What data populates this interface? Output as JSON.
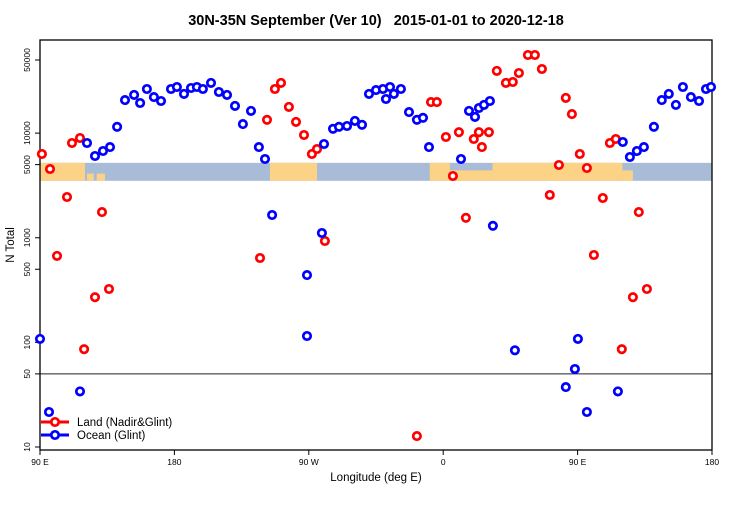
{
  "chart_data": {
    "type": "scatter",
    "title": "30N-35N September (Ver 10)   2015-01-01 to 2020-12-18",
    "xlabel": "Longitude (deg E)",
    "ylabel": "N Total",
    "x_axis": {
      "range": [
        90,
        540
      ],
      "note": "longitude wraps eastward: 90E to 180 to 90W to 0 to 90E to 180",
      "ticks": [
        {
          "value": 90,
          "label": "90 E"
        },
        {
          "value": 180,
          "label": "180"
        },
        {
          "value": 270,
          "label": "90 W"
        },
        {
          "value": 360,
          "label": "0"
        },
        {
          "value": 450,
          "label": "90 E"
        },
        {
          "value": 540,
          "label": "180"
        }
      ]
    },
    "y_axis": {
      "scale": "log",
      "range": [
        10,
        50000
      ],
      "ticks": [
        50000,
        10000,
        5000,
        1000,
        500,
        100,
        50,
        10
      ]
    },
    "reference_line_y": 50,
    "coast_band": {
      "value_range": [
        3500,
        5200
      ],
      "ocean_color": "#a8bcd8",
      "land_color": "#fbd286",
      "land_segments": [
        {
          "from": 90,
          "to": 120.1,
          "part": "full"
        },
        {
          "from": 121.5,
          "to": 126,
          "part": "speck"
        },
        {
          "from": 128,
          "to": 133.5,
          "part": "speck"
        },
        {
          "from": 244,
          "to": 275.5,
          "part": "full"
        },
        {
          "from": 351,
          "to": 364.5,
          "part": "full"
        },
        {
          "from": 364.5,
          "to": 393,
          "part": "bottom"
        },
        {
          "from": 393,
          "to": 480,
          "part": "full"
        },
        {
          "from": 480,
          "to": 487,
          "part": "bottom"
        }
      ]
    },
    "legend": {
      "position": "bottom-left"
    },
    "series": [
      {
        "name": "Land (Nadir&Glint)",
        "color": "#ff0000",
        "points": [
          [
            91.3,
            6320
          ],
          [
            96.7,
            4540
          ],
          [
            101.4,
            670
          ],
          [
            108.1,
            2450
          ],
          [
            111.4,
            8050
          ],
          [
            116.8,
            8980
          ],
          [
            119.5,
            86
          ],
          [
            126.8,
            270
          ],
          [
            131.5,
            1760
          ],
          [
            136.2,
            324
          ],
          [
            237.3,
            640
          ],
          [
            242,
            13400
          ],
          [
            247.3,
            26400
          ],
          [
            251.4,
            30200
          ],
          [
            256.7,
            17800
          ],
          [
            261.4,
            12800
          ],
          [
            266.8,
            9600
          ],
          [
            272.1,
            6320
          ],
          [
            275.5,
            7050
          ],
          [
            280.8,
            930
          ],
          [
            342.4,
            12.7
          ],
          [
            351.8,
            19800
          ],
          [
            355.8,
            19800
          ],
          [
            361.8,
            9180
          ],
          [
            366.5,
            3890
          ],
          [
            370.5,
            10200
          ],
          [
            375.2,
            1550
          ],
          [
            380.5,
            8790
          ],
          [
            383.9,
            10200
          ],
          [
            385.9,
            7360
          ],
          [
            390.6,
            10200
          ],
          [
            395.9,
            39300
          ],
          [
            402,
            30200
          ],
          [
            406.6,
            30800
          ],
          [
            410.7,
            37600
          ],
          [
            416.7,
            55800
          ],
          [
            421.4,
            55800
          ],
          [
            426.1,
            41000
          ],
          [
            431.4,
            2560
          ],
          [
            437.5,
            4960
          ],
          [
            442.1,
            21700
          ],
          [
            446.2,
            15200
          ],
          [
            451.5,
            6320
          ],
          [
            456.2,
            4640
          ],
          [
            460.9,
            684
          ],
          [
            466.9,
            2400
          ],
          [
            471.6,
            8050
          ],
          [
            475.6,
            8790
          ],
          [
            479.6,
            86
          ],
          [
            487,
            270
          ],
          [
            491,
            1760
          ],
          [
            496.4,
            324
          ]
        ]
      },
      {
        "name": "Ocean (Glint)",
        "color": "#0000ff",
        "points": [
          [
            90,
            108
          ],
          [
            96,
            21.6
          ],
          [
            116.8,
            34
          ],
          [
            121.5,
            8050
          ],
          [
            126.8,
            6040
          ],
          [
            132.2,
            6750
          ],
          [
            136.9,
            7360
          ],
          [
            141.6,
            11500
          ],
          [
            146.9,
            20700
          ],
          [
            153,
            23200
          ],
          [
            157,
            19400
          ],
          [
            161.6,
            26400
          ],
          [
            166.3,
            22100
          ],
          [
            171,
            20300
          ],
          [
            177.7,
            26400
          ],
          [
            181.7,
            27600
          ],
          [
            186.4,
            23700
          ],
          [
            191.1,
            27000
          ],
          [
            195.1,
            27600
          ],
          [
            199.1,
            26400
          ],
          [
            204.5,
            30200
          ],
          [
            209.8,
            24700
          ],
          [
            215.2,
            23200
          ],
          [
            220.6,
            18200
          ],
          [
            225.9,
            12200
          ],
          [
            231.3,
            16300
          ],
          [
            236.6,
            7360
          ],
          [
            240.7,
            5660
          ],
          [
            245.4,
            1650
          ],
          [
            268.8,
            440
          ],
          [
            268.8,
            115
          ],
          [
            278.8,
            1110
          ],
          [
            280.2,
            7870
          ],
          [
            286.2,
            11000
          ],
          [
            290.2,
            11500
          ],
          [
            295.6,
            11700
          ],
          [
            300.9,
            13100
          ],
          [
            305.6,
            12000
          ],
          [
            310.3,
            23700
          ],
          [
            315,
            25800
          ],
          [
            319.7,
            26400
          ],
          [
            321.7,
            21200
          ],
          [
            324.4,
            27600
          ],
          [
            327,
            23700
          ],
          [
            331.7,
            26400
          ],
          [
            337.1,
            15900
          ],
          [
            342.4,
            13400
          ],
          [
            346.5,
            14000
          ],
          [
            350.5,
            7360
          ],
          [
            371.9,
            5660
          ],
          [
            377.3,
            16300
          ],
          [
            381.3,
            14300
          ],
          [
            383.9,
            17400
          ],
          [
            387.3,
            18600
          ],
          [
            391.3,
            20300
          ],
          [
            393.3,
            1300
          ],
          [
            408,
            84
          ],
          [
            442.1,
            37.4
          ],
          [
            448.2,
            55.6
          ],
          [
            450.2,
            108
          ],
          [
            456.2,
            21.6
          ],
          [
            477,
            34
          ],
          [
            480.3,
            8220
          ],
          [
            485,
            5910
          ],
          [
            489.7,
            6750
          ],
          [
            494.4,
            7360
          ],
          [
            501.1,
            11500
          ],
          [
            506.4,
            20700
          ],
          [
            511.1,
            23700
          ],
          [
            515.8,
            18600
          ],
          [
            520.5,
            27600
          ],
          [
            525.9,
            22100
          ],
          [
            531.3,
            20300
          ],
          [
            536,
            26400
          ],
          [
            539.3,
            27600
          ]
        ]
      }
    ]
  }
}
